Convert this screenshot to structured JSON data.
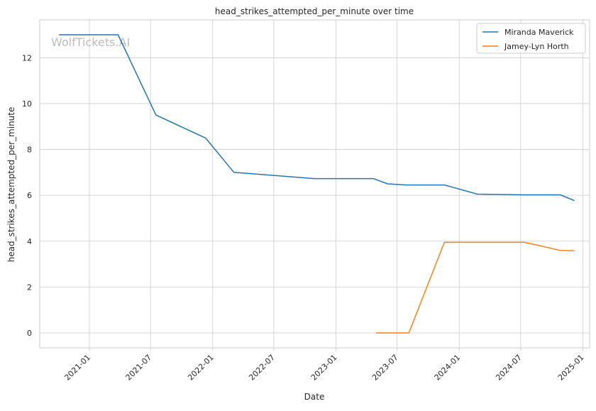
{
  "chart_data": {
    "type": "line",
    "title": "head_strikes_attempted_per_minute over time",
    "xlabel": "Date",
    "ylabel": "head_strikes_attempted_per_minute",
    "watermark": "WolfTickets.AI",
    "legend_position": "top-right",
    "grid": true,
    "xlim": [
      "2020-08-07",
      "2025-01-21"
    ],
    "ylim": [
      -0.65,
      13.65
    ],
    "x_ticks": [
      "2021-01-01",
      "2021-07-01",
      "2022-01-01",
      "2022-07-01",
      "2023-01-01",
      "2023-07-01",
      "2024-01-01",
      "2024-07-01",
      "2025-01-01"
    ],
    "x_tick_labels": [
      "2021-01",
      "2021-07",
      "2022-01",
      "2022-07",
      "2023-01",
      "2023-07",
      "2024-01",
      "2024-07",
      "2025-01"
    ],
    "y_ticks": [
      0,
      2,
      4,
      6,
      8,
      10,
      12
    ],
    "y_tick_labels": [
      "0",
      "2",
      "4",
      "6",
      "8",
      "10",
      "12"
    ],
    "series": [
      {
        "name": "Miranda Maverick",
        "color": "#1f77b4",
        "points": [
          {
            "x": "2020-10-03",
            "y": 13.0
          },
          {
            "x": "2021-03-27",
            "y": 13.0
          },
          {
            "x": "2021-07-17",
            "y": 9.5
          },
          {
            "x": "2021-12-11",
            "y": 8.5
          },
          {
            "x": "2022-03-05",
            "y": 7.0
          },
          {
            "x": "2022-10-29",
            "y": 6.73
          },
          {
            "x": "2023-04-22",
            "y": 6.73
          },
          {
            "x": "2023-06-03",
            "y": 6.5
          },
          {
            "x": "2023-07-29",
            "y": 6.45
          },
          {
            "x": "2023-11-18",
            "y": 6.45
          },
          {
            "x": "2024-02-24",
            "y": 6.05
          },
          {
            "x": "2024-07-13",
            "y": 6.02
          },
          {
            "x": "2024-10-26",
            "y": 6.02
          },
          {
            "x": "2024-12-07",
            "y": 5.77
          }
        ]
      },
      {
        "name": "Jamey-Lyn Horth",
        "color": "#ff7f0e",
        "points": [
          {
            "x": "2023-04-29",
            "y": 0.0
          },
          {
            "x": "2023-08-05",
            "y": 0.0
          },
          {
            "x": "2023-11-18",
            "y": 3.95
          },
          {
            "x": "2024-07-13",
            "y": 3.95
          },
          {
            "x": "2024-10-26",
            "y": 3.6
          },
          {
            "x": "2024-12-07",
            "y": 3.58
          }
        ]
      }
    ]
  }
}
